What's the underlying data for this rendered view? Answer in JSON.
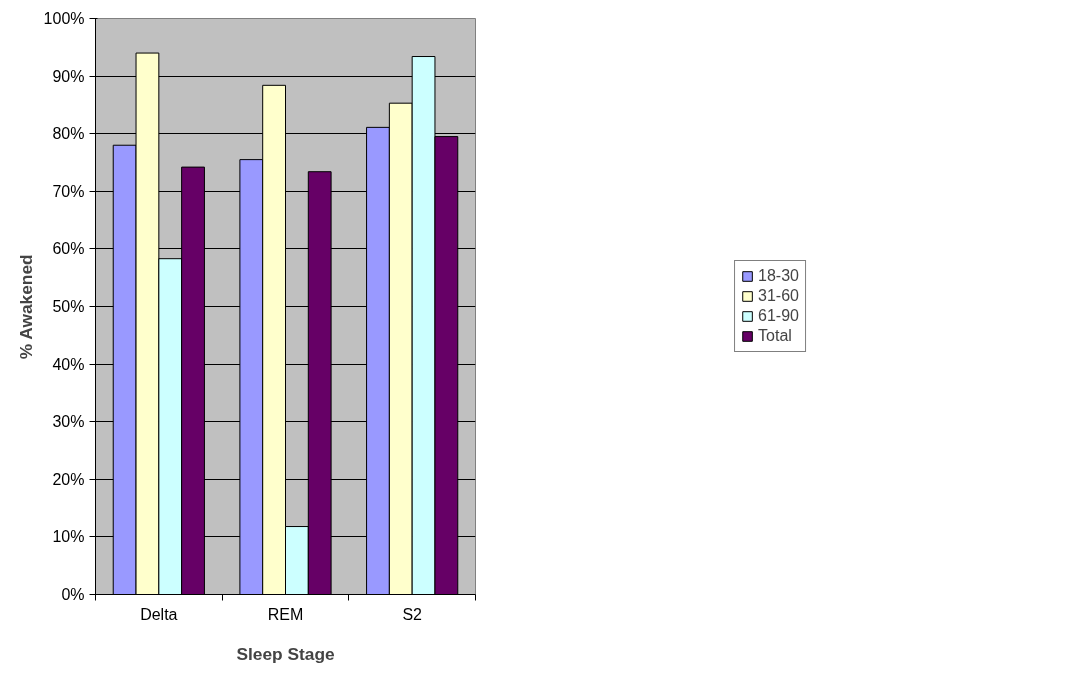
{
  "chart_data": {
    "type": "bar",
    "xlabel": "Sleep Stage",
    "ylabel": "% Awakened",
    "categories": [
      "Delta",
      "REM",
      "S2"
    ],
    "series": [
      {
        "name": "18-30",
        "color": "#9999ff",
        "values": [
          78,
          75.5,
          81.1
        ]
      },
      {
        "name": "31-60",
        "color": "#ffffcc",
        "values": [
          94,
          88.4,
          85.3
        ]
      },
      {
        "name": "61-90",
        "color": "#ccffff",
        "values": [
          58.3,
          11.8,
          93.4
        ]
      },
      {
        "name": "Total",
        "color": "#660066",
        "values": [
          74.2,
          73.4,
          79.5
        ]
      }
    ],
    "ylim": [
      0,
      100
    ],
    "yticks": [
      {
        "value": 0,
        "label": "0%"
      },
      {
        "value": 10,
        "label": "10%"
      },
      {
        "value": 20,
        "label": "20%"
      },
      {
        "value": 30,
        "label": "30%"
      },
      {
        "value": 40,
        "label": "40%"
      },
      {
        "value": 50,
        "label": "50%"
      },
      {
        "value": 60,
        "label": "60%"
      },
      {
        "value": 70,
        "label": "70%"
      },
      {
        "value": 80,
        "label": "80%"
      },
      {
        "value": 90,
        "label": "90%"
      },
      {
        "value": 100,
        "label": "100%"
      }
    ],
    "grid": "y",
    "legend": "right"
  }
}
